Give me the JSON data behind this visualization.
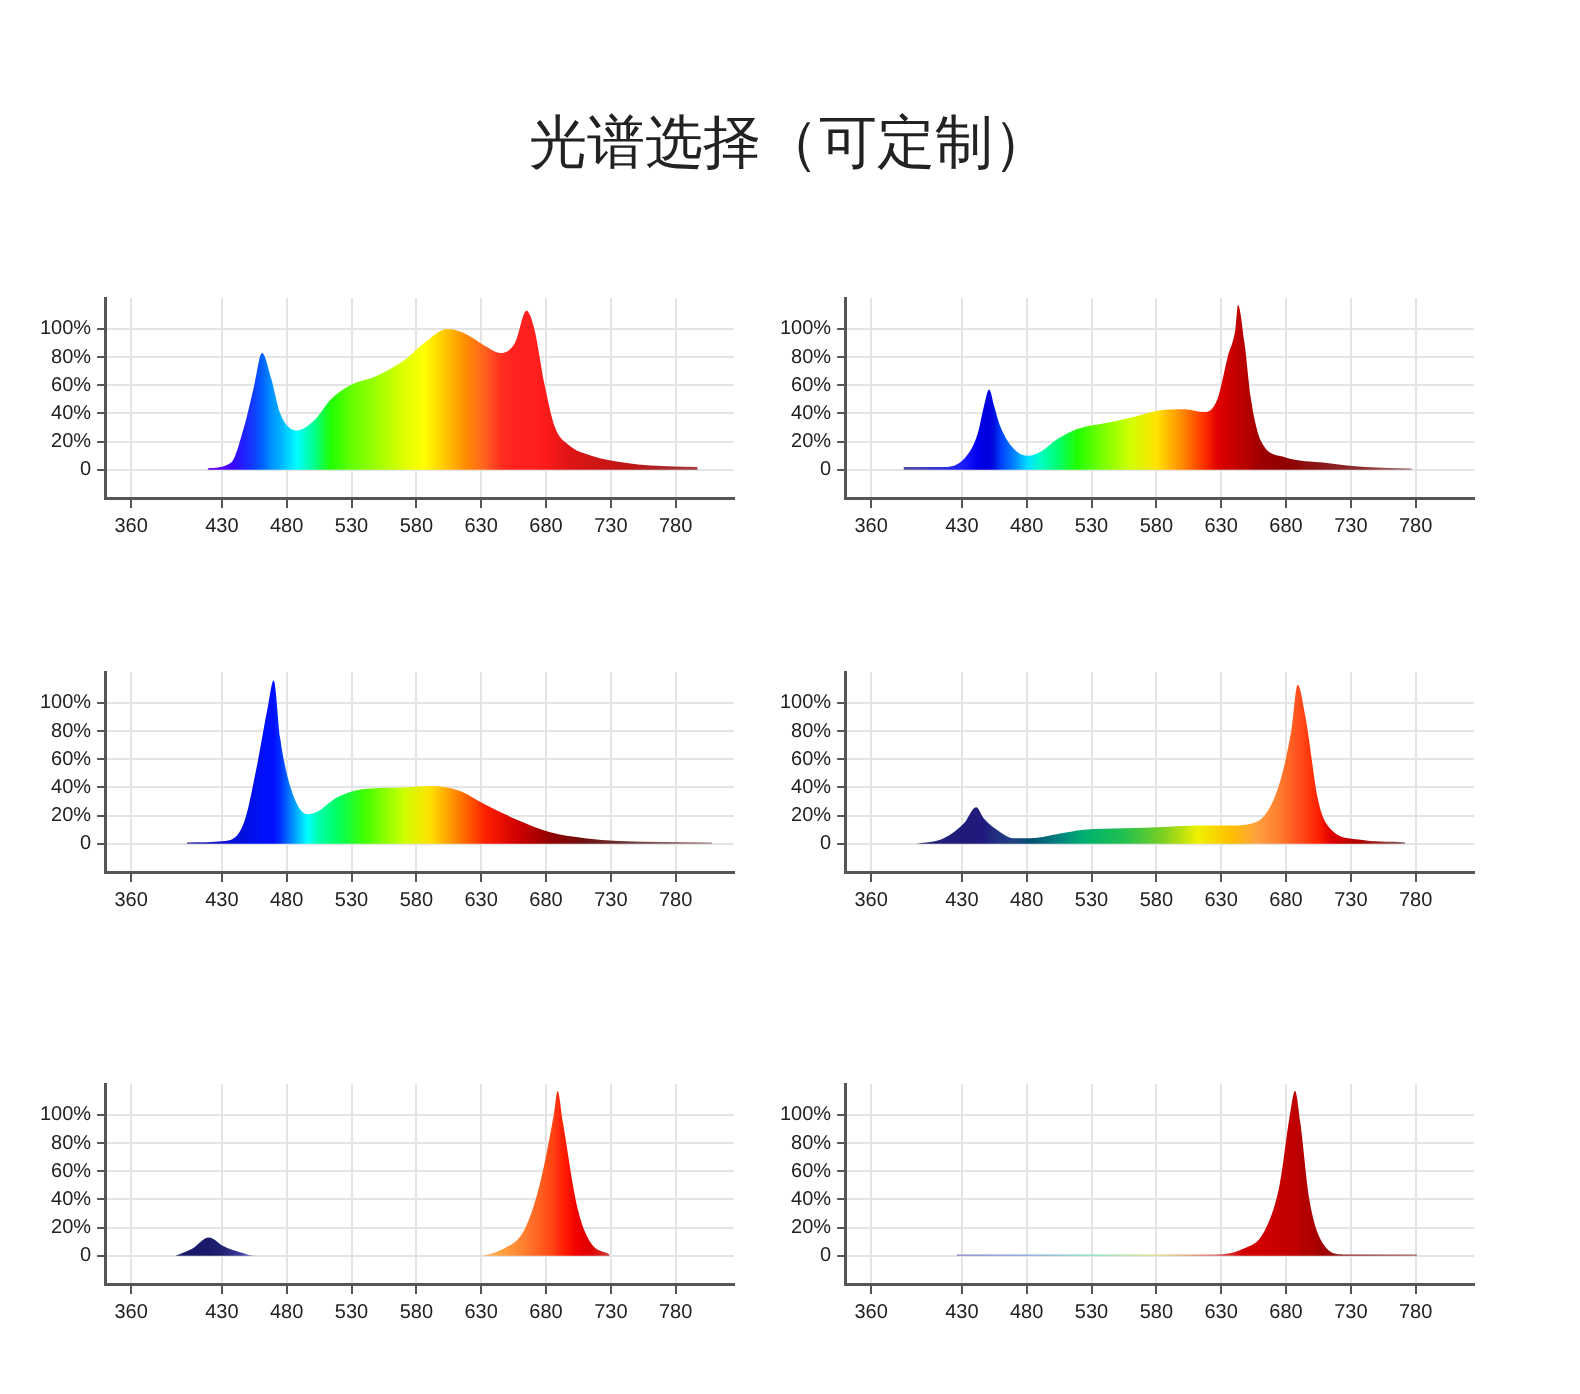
{
  "chart_data": [
    {
      "type": "area",
      "title": "光谱选择（可定制）",
      "xlim": [
        340,
        825
      ],
      "ylim": [
        -20,
        122
      ],
      "xticks": [
        360,
        430,
        480,
        530,
        580,
        630,
        680,
        730,
        780
      ],
      "yticks": [
        {
          "value": 0,
          "label": "0"
        },
        {
          "value": 20,
          "label": "20%"
        },
        {
          "value": 40,
          "label": "40%"
        },
        {
          "value": 60,
          "label": "60%"
        },
        {
          "value": 80,
          "label": "80%"
        },
        {
          "value": 100,
          "label": "100%"
        }
      ],
      "grid": true,
      "legend": false,
      "marker": "none",
      "series": [
        {
          "x": [
            419,
            437,
            447,
            455,
            461,
            468,
            475,
            488,
            501,
            514,
            529,
            550,
            571,
            586,
            604,
            617,
            633,
            645,
            656,
            665,
            671,
            679,
            687,
            697,
            715,
            741,
            761,
            797
          ],
          "values": [
            1,
            5,
            30,
            60,
            83,
            65,
            40,
            28,
            35,
            50,
            60,
            67,
            78,
            90,
            100,
            97,
            88,
            83,
            90,
            113,
            100,
            60,
            30,
            18,
            10,
            5,
            3,
            2
          ],
          "colors": [
            "#7000ff",
            "#4000ff",
            "#2020ff",
            "#1040ff",
            "#0060ff",
            "#0090ff",
            "#00b0ff",
            "#00ffff",
            "#00ff90",
            "#20ff00",
            "#60ff00",
            "#a0ff00",
            "#e0ff00",
            "#ffff00",
            "#ffc000",
            "#ff9000",
            "#ff6020",
            "#ff3020",
            "#ff2020",
            "#ff2020",
            "#ff2020",
            "#ff1a1a",
            "#f01818",
            "#e01515",
            "#d01515",
            "#c01515",
            "#b02020",
            "#a04040"
          ]
        }
      ]
    },
    {
      "type": "area",
      "xlim": [
        340,
        825
      ],
      "ylim": [
        -20,
        122
      ],
      "xticks": [
        360,
        430,
        480,
        530,
        580,
        630,
        680,
        730,
        780
      ],
      "yticks": [
        {
          "value": 0,
          "label": "0"
        },
        {
          "value": 20,
          "label": "20%"
        },
        {
          "value": 40,
          "label": "40%"
        },
        {
          "value": 60,
          "label": "60%"
        },
        {
          "value": 80,
          "label": "80%"
        },
        {
          "value": 100,
          "label": "100%"
        }
      ],
      "grid": true,
      "legend": false,
      "marker": "none",
      "series": [
        {
          "x": [
            385,
            416,
            432,
            442,
            447,
            451,
            455,
            460,
            470,
            481,
            491,
            504,
            519,
            540,
            560,
            581,
            602,
            617,
            627,
            635,
            641,
            643,
            648,
            653,
            661,
            679,
            710,
            741,
            777
          ],
          "values": [
            2,
            2,
            8,
            25,
            45,
            57,
            45,
            30,
            15,
            10,
            13,
            22,
            29,
            33,
            37,
            42,
            43,
            41,
            50,
            80,
            100,
            117,
            90,
            50,
            20,
            9,
            5,
            2,
            1
          ],
          "colors": [
            "#5050a0",
            "#3030e0",
            "#1a1aff",
            "#0000f0",
            "#0000e0",
            "#0000e0",
            "#0010e0",
            "#0040ff",
            "#0080ff",
            "#00e0ff",
            "#00ffc0",
            "#00ff70",
            "#20ff00",
            "#80ff00",
            "#d0ff00",
            "#ffe000",
            "#ff8000",
            "#ff3000",
            "#e00000",
            "#d00000",
            "#c80000",
            "#c00000",
            "#b80000",
            "#b00000",
            "#a00000",
            "#900000",
            "#8a1a1a",
            "#8b3030",
            "#a07070"
          ]
        }
      ]
    },
    {
      "type": "area",
      "xlim": [
        340,
        825
      ],
      "ylim": [
        -20,
        122
      ],
      "xticks": [
        360,
        430,
        480,
        530,
        580,
        630,
        680,
        730,
        780
      ],
      "yticks": [
        {
          "value": 0,
          "label": "0"
        },
        {
          "value": 20,
          "label": "20%"
        },
        {
          "value": 40,
          "label": "40%"
        },
        {
          "value": 60,
          "label": "60%"
        },
        {
          "value": 80,
          "label": "80%"
        },
        {
          "value": 100,
          "label": "100%"
        }
      ],
      "grid": true,
      "legend": false,
      "marker": "none",
      "series": [
        {
          "x": [
            403,
            432,
            447,
            457,
            465,
            470,
            475,
            483,
            496,
            504,
            519,
            540,
            571,
            591,
            612,
            633,
            658,
            684,
            710,
            736,
            808
          ],
          "values": [
            1,
            2,
            15,
            55,
            95,
            116,
            75,
            40,
            21,
            23,
            33,
            39,
            40,
            41,
            38,
            28,
            17,
            8,
            4,
            2,
            1
          ],
          "colors": [
            "#3030a0",
            "#1010d0",
            "#0010e0",
            "#0010f0",
            "#0010ff",
            "#0010ff",
            "#0030ff",
            "#0080ff",
            "#00ffff",
            "#00ffb0",
            "#00ff60",
            "#40ff00",
            "#d0ff00",
            "#ffe000",
            "#ff8000",
            "#ff2000",
            "#d00000",
            "#900000",
            "#701010",
            "#6a3030",
            "#a08080"
          ]
        }
      ]
    },
    {
      "type": "area",
      "xlim": [
        340,
        825
      ],
      "ylim": [
        -20,
        122
      ],
      "xticks": [
        360,
        430,
        480,
        530,
        580,
        630,
        680,
        730,
        780
      ],
      "yticks": [
        {
          "value": 0,
          "label": "0"
        },
        {
          "value": 20,
          "label": "20%"
        },
        {
          "value": 40,
          "label": "40%"
        },
        {
          "value": 60,
          "label": "60%"
        },
        {
          "value": 80,
          "label": "80%"
        },
        {
          "value": 100,
          "label": "100%"
        }
      ],
      "grid": true,
      "legend": false,
      "marker": "none",
      "series": [
        {
          "x": [
            395,
            416,
            432,
            441,
            447,
            457,
            470,
            483,
            504,
            524,
            555,
            586,
            612,
            637,
            658,
            674,
            684,
            689,
            695,
            705,
            715,
            736,
            772
          ],
          "values": [
            0,
            4,
            15,
            26,
            18,
            10,
            4,
            4,
            7,
            10,
            11,
            12,
            13,
            13,
            16,
            40,
            80,
            113,
            90,
            30,
            10,
            3,
            1
          ],
          "colors": [
            "#20206a",
            "#20207a",
            "#201a7a",
            "#201a7a",
            "#201a80",
            "#203080",
            "#204080",
            "#005070",
            "#008080",
            "#00b070",
            "#20c050",
            "#80d020",
            "#f0f000",
            "#ffc000",
            "#ffa040",
            "#ff8030",
            "#ff6020",
            "#ff5020",
            "#ff4010",
            "#ff2000",
            "#e00000",
            "#b00000",
            "#806060"
          ]
        }
      ]
    },
    {
      "type": "area",
      "xlim": [
        340,
        825
      ],
      "ylim": [
        -20,
        122
      ],
      "xticks": [
        360,
        430,
        480,
        530,
        580,
        630,
        680,
        730,
        780
      ],
      "yticks": [
        {
          "value": 0,
          "label": "0"
        },
        {
          "value": 20,
          "label": "20%"
        },
        {
          "value": 40,
          "label": "40%"
        },
        {
          "value": 60,
          "label": "60%"
        },
        {
          "value": 80,
          "label": "80%"
        },
        {
          "value": 100,
          "label": "100%"
        }
      ],
      "grid": true,
      "legend": false,
      "marker": "none",
      "series": [
        {
          "x": [
            394,
            407,
            420,
            431,
            446,
            456,
            626,
            647,
            663,
            675,
            686,
            689,
            693,
            704,
            714,
            729
          ],
          "values": [
            0,
            5,
            13,
            7,
            2,
            0,
            0,
            5,
            18,
            50,
            100,
            117,
            95,
            35,
            10,
            1
          ],
          "colors": [
            "#20206a",
            "#1a1a6a",
            "#1a1a6a",
            "#202070",
            "#4040a0",
            "#8080c0",
            "#ffb060",
            "#ffa040",
            "#ff8030",
            "#ff6020",
            "#ff4010",
            "#ff3010",
            "#ff2000",
            "#f00000",
            "#e00000",
            "#d04040"
          ]
        }
      ]
    },
    {
      "type": "area",
      "xlim": [
        340,
        825
      ],
      "ylim": [
        -20,
        122
      ],
      "xticks": [
        360,
        430,
        480,
        530,
        580,
        630,
        680,
        730,
        780
      ],
      "yticks": [
        {
          "value": 0,
          "label": "0"
        },
        {
          "value": 20,
          "label": "20%"
        },
        {
          "value": 40,
          "label": "40%"
        },
        {
          "value": 60,
          "label": "60%"
        },
        {
          "value": 80,
          "label": "80%"
        },
        {
          "value": 100,
          "label": "100%"
        }
      ],
      "grid": true,
      "legend": false,
      "marker": "none",
      "series": [
        {
          "x": [
            426,
            480,
            530,
            580,
            626,
            647,
            663,
            675,
            683,
            687,
            691,
            698,
            709,
            724,
            781
          ],
          "values": [
            1,
            1,
            1,
            1,
            1,
            5,
            17,
            50,
            100,
            117,
            95,
            40,
            8,
            1,
            1
          ],
          "colors": [
            "#8080c0",
            "#80a0e0",
            "#80e0c0",
            "#e0e080",
            "#e06060",
            "#d00000",
            "#d00000",
            "#c80000",
            "#c00000",
            "#c00000",
            "#b80000",
            "#b00000",
            "#a00000",
            "#902020",
            "#a06060"
          ]
        }
      ]
    }
  ]
}
